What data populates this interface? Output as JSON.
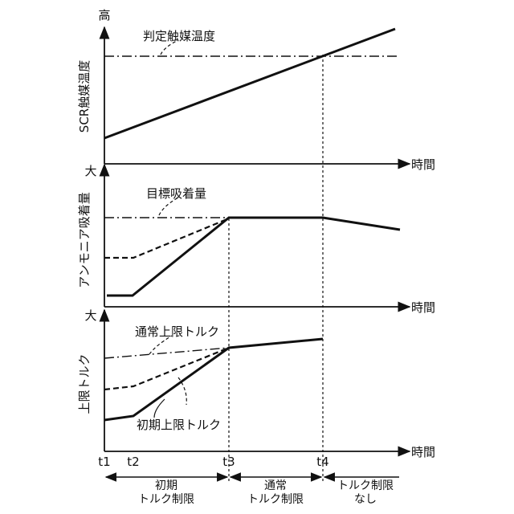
{
  "colors": {
    "ink": "#111111",
    "background": "#ffffff"
  },
  "time_axis": {
    "label": "時間",
    "ticks": [
      "t1",
      "t2",
      "t3",
      "t4"
    ]
  },
  "panels": {
    "temperature": {
      "y_axis_label": "SCR触媒温度",
      "y_high_label": "高",
      "reference_label": "判定触媒温度"
    },
    "adsorption": {
      "y_axis_label": "アンモニア吸着量",
      "y_high_label": "大",
      "reference_label": "目標吸着量"
    },
    "torque": {
      "y_axis_label": "上限トルク",
      "y_high_label": "大",
      "normal_limit_label": "通常上限トルク",
      "initial_limit_label": "初期上限トルク"
    }
  },
  "phases": [
    {
      "line1": "初期",
      "line2": "トルク制限"
    },
    {
      "line1": "通常",
      "line2": "トルク制限"
    },
    {
      "line1": "トルク制限",
      "line2": "なし"
    }
  ]
}
